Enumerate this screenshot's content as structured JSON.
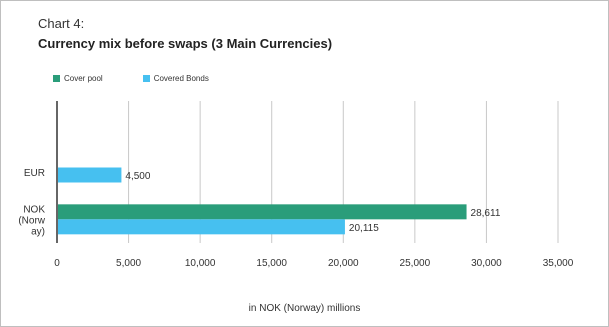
{
  "header": {
    "chart_number": "Chart 4:",
    "title": "Currency mix before swaps (3 Main Currencies)"
  },
  "colors": {
    "cover_pool": "#2a9d7a",
    "covered_bonds": "#46c0f0",
    "grid": "#c8c8c8",
    "axis": "#000000"
  },
  "chart_data": {
    "type": "bar",
    "orientation": "horizontal",
    "title": "Currency mix before swaps (3 Main Currencies)",
    "xlabel": "in NOK (Norway) millions",
    "ylabel": "",
    "categories": [
      "",
      "EUR",
      "NOK (Norway)"
    ],
    "category_labels": [
      [
        ""
      ],
      [
        "EUR"
      ],
      [
        "NOK",
        "(Norw",
        "ay)"
      ]
    ],
    "series": [
      {
        "name": "Cover pool",
        "color": "#2a9d7a",
        "values": [
          null,
          null,
          28611
        ],
        "labels": [
          null,
          null,
          "28,611"
        ]
      },
      {
        "name": "Covered Bonds",
        "color": "#46c0f0",
        "values": [
          null,
          4500,
          20115
        ],
        "labels": [
          null,
          "4,500",
          "20,115"
        ]
      }
    ],
    "xlim": [
      0,
      35000
    ],
    "ticks": [
      0,
      5000,
      10000,
      15000,
      20000,
      25000,
      30000,
      35000
    ],
    "tick_labels": [
      "0",
      "5,000",
      "10,000",
      "15,000",
      "20,000",
      "25,000",
      "30,000",
      "35,000"
    ],
    "grid": true,
    "legend_position": "top-left"
  }
}
